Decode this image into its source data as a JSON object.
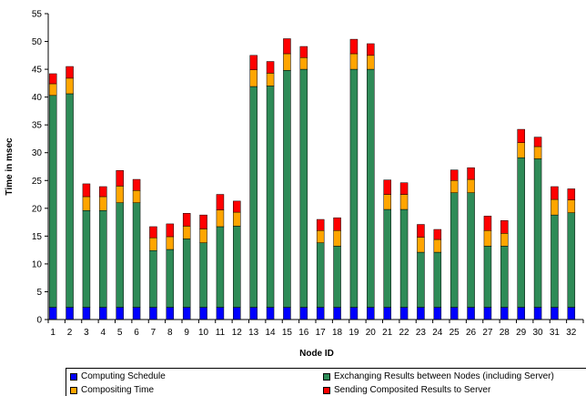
{
  "chart_data": {
    "type": "bar",
    "stacked": true,
    "xlabel": "Node ID",
    "ylabel": "Time in msec",
    "ylim": [
      0,
      55
    ],
    "ytick_step": 5,
    "grid": false,
    "legend_position": "bottom",
    "categories": [
      "1",
      "2",
      "3",
      "4",
      "5",
      "6",
      "7",
      "8",
      "9",
      "10",
      "11",
      "12",
      "13",
      "14",
      "15",
      "16",
      "17",
      "18",
      "19",
      "20",
      "21",
      "22",
      "23",
      "24",
      "25",
      "26",
      "27",
      "28",
      "29",
      "30",
      "31",
      "32"
    ],
    "series": [
      {
        "name": "Computing Schedule",
        "color": "#0000ff",
        "values": [
          2.2,
          2.2,
          2.2,
          2.2,
          2.2,
          2.2,
          2.2,
          2.2,
          2.2,
          2.2,
          2.2,
          2.2,
          2.2,
          2.2,
          2.2,
          2.2,
          2.2,
          2.2,
          2.2,
          2.2,
          2.2,
          2.2,
          2.2,
          2.2,
          2.2,
          2.2,
          2.2,
          2.2,
          2.2,
          2.2,
          2.2,
          2.2
        ]
      },
      {
        "name": "Exchanging Results between Nodes (including Server)",
        "color": "#2e8b57",
        "values": [
          38.1,
          38.4,
          17.4,
          17.4,
          18.8,
          18.8,
          10.2,
          10.4,
          12.3,
          11.6,
          14.5,
          14.6,
          39.7,
          39.8,
          42.6,
          42.8,
          11.6,
          11.0,
          42.8,
          42.8,
          17.6,
          17.6,
          9.9,
          9.9,
          20.6,
          20.6,
          11.0,
          11.0,
          26.9,
          26.7,
          16.6,
          17.0
        ]
      },
      {
        "name": "Compositing Time",
        "color": "#ffa500",
        "values": [
          2.1,
          2.8,
          2.5,
          2.5,
          3.0,
          2.2,
          2.3,
          2.3,
          2.3,
          2.5,
          3.0,
          2.5,
          3.0,
          2.3,
          3.0,
          2.1,
          2.2,
          2.8,
          2.8,
          2.5,
          2.7,
          2.7,
          2.7,
          2.3,
          2.2,
          2.4,
          2.8,
          2.3,
          2.7,
          2.2,
          2.8,
          2.3
        ]
      },
      {
        "name": "Sending Composited Results to Server",
        "color": "#ff0000",
        "values": [
          1.8,
          2.1,
          2.3,
          1.8,
          2.8,
          2.0,
          2.0,
          2.3,
          2.3,
          2.5,
          2.8,
          2.0,
          2.6,
          2.1,
          2.7,
          2.0,
          2.0,
          2.3,
          2.6,
          2.1,
          2.6,
          2.1,
          2.3,
          1.8,
          1.9,
          2.1,
          2.6,
          2.3,
          2.4,
          1.7,
          2.3,
          2.0
        ]
      }
    ]
  }
}
